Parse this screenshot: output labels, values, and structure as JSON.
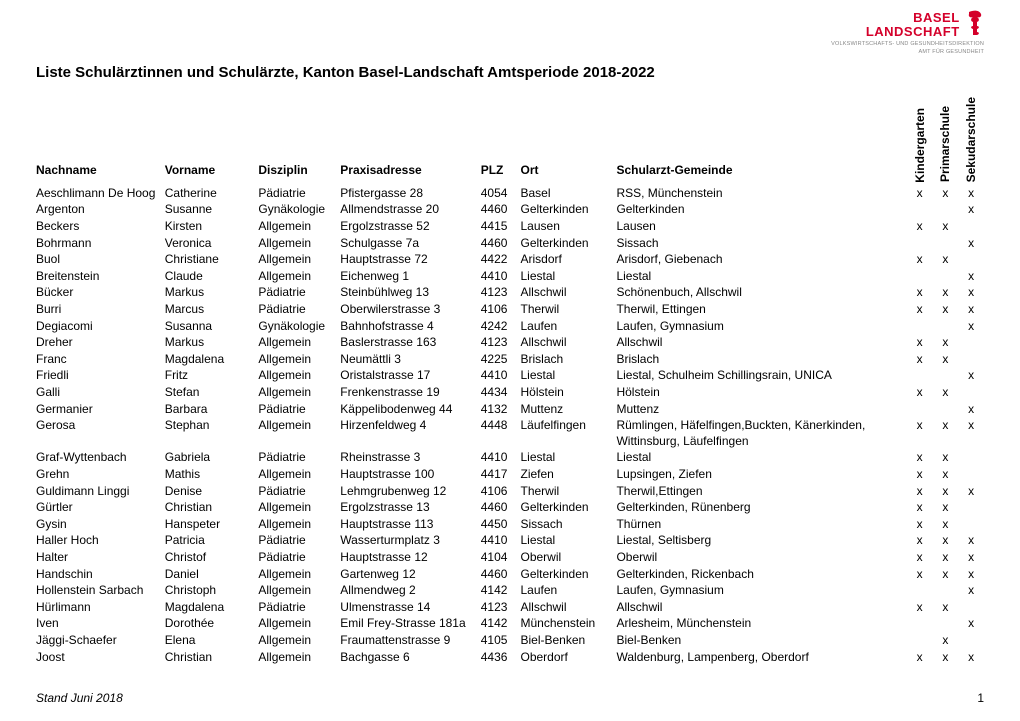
{
  "logo": {
    "line1": "BASEL",
    "line2": "LANDSCHAFT",
    "sub1": "VOLKSWIRTSCHAFTS- UND GESUNDHEITSDIREKTION",
    "sub2": "AMT FÜR GESUNDHEIT",
    "color": "#d4002a"
  },
  "title": "Liste Schulärztinnen und Schulärzte, Kanton Basel-Landschaft Amtsperiode 2018-2022",
  "columns": {
    "nachname": "Nachname",
    "vorname": "Vorname",
    "disziplin": "Disziplin",
    "adresse": "Praxisadresse",
    "plz": "PLZ",
    "ort": "Ort",
    "gemeinde": "Schularzt-Gemeinde",
    "kg": "Kindergarten",
    "ps": "Primarschule",
    "ss": "Sekudarschule"
  },
  "rows": [
    {
      "nach": "Aeschlimann De Hoog",
      "vor": "Catherine",
      "dis": "Pädiatrie",
      "adr": "Pfistergasse 28",
      "plz": "4054",
      "ort": "Basel",
      "gem": "RSS, Münchenstein",
      "kg": "x",
      "ps": "x",
      "ss": "x"
    },
    {
      "nach": "Argenton",
      "vor": "Susanne",
      "dis": "Gynäkologie",
      "adr": "Allmendstrasse 20",
      "plz": "4460",
      "ort": "Gelterkinden",
      "gem": "Gelterkinden",
      "kg": "",
      "ps": "",
      "ss": "x"
    },
    {
      "nach": "Beckers",
      "vor": "Kirsten",
      "dis": "Allgemein",
      "adr": "Ergolzstrasse 52",
      "plz": "4415",
      "ort": "Lausen",
      "gem": "Lausen",
      "kg": "x",
      "ps": "x",
      "ss": ""
    },
    {
      "nach": "Bohrmann",
      "vor": "Veronica",
      "dis": "Allgemein",
      "adr": "Schulgasse 7a",
      "plz": "4460",
      "ort": "Gelterkinden",
      "gem": "Sissach",
      "kg": "",
      "ps": "",
      "ss": "x"
    },
    {
      "nach": "Buol",
      "vor": "Christiane",
      "dis": "Allgemein",
      "adr": "Hauptstrasse 72",
      "plz": "4422",
      "ort": "Arisdorf",
      "gem": "Arisdorf, Giebenach",
      "kg": "x",
      "ps": "x",
      "ss": ""
    },
    {
      "nach": "Breitenstein",
      "vor": "Claude",
      "dis": "Allgemein",
      "adr": "Eichenweg 1",
      "plz": "4410",
      "ort": "Liestal",
      "gem": "Liestal",
      "kg": "",
      "ps": "",
      "ss": "x"
    },
    {
      "nach": "Bücker",
      "vor": "Markus",
      "dis": "Pädiatrie",
      "adr": "Steinbühlweg 13",
      "plz": "4123",
      "ort": "Allschwil",
      "gem": "Schönenbuch, Allschwil",
      "kg": "x",
      "ps": "x",
      "ss": "x"
    },
    {
      "nach": "Burri",
      "vor": "Marcus",
      "dis": "Pädiatrie",
      "adr": "Oberwilerstrasse 3",
      "plz": "4106",
      "ort": "Therwil",
      "gem": "Therwil, Ettingen",
      "kg": "x",
      "ps": "x",
      "ss": "x"
    },
    {
      "nach": "Degiacomi",
      "vor": "Susanna",
      "dis": "Gynäkologie",
      "adr": "Bahnhofstrasse 4",
      "plz": "4242",
      "ort": "Laufen",
      "gem": "Laufen, Gymnasium",
      "kg": "",
      "ps": "",
      "ss": "x"
    },
    {
      "nach": "Dreher",
      "vor": "Markus",
      "dis": "Allgemein",
      "adr": "Baslerstrasse 163",
      "plz": "4123",
      "ort": "Allschwil",
      "gem": "Allschwil",
      "kg": "x",
      "ps": "x",
      "ss": ""
    },
    {
      "nach": "Franc",
      "vor": "Magdalena",
      "dis": "Allgemein",
      "adr": "Neumättli 3",
      "plz": "4225",
      "ort": "Brislach",
      "gem": "Brislach",
      "kg": "x",
      "ps": "x",
      "ss": ""
    },
    {
      "nach": "Friedli",
      "vor": "Fritz",
      "dis": "Allgemein",
      "adr": "Oristalstrasse 17",
      "plz": "4410",
      "ort": "Liestal",
      "gem": "Liestal, Schulheim Schillingsrain, UNICA",
      "kg": "",
      "ps": "",
      "ss": "x"
    },
    {
      "nach": "Galli",
      "vor": "Stefan",
      "dis": "Allgemein",
      "adr": "Frenkenstrasse 19",
      "plz": "4434",
      "ort": "Hölstein",
      "gem": "Hölstein",
      "kg": "x",
      "ps": "x",
      "ss": ""
    },
    {
      "nach": "Germanier",
      "vor": "Barbara",
      "dis": "Pädiatrie",
      "adr": "Käppelibodenweg 44",
      "plz": "4132",
      "ort": "Muttenz",
      "gem": "Muttenz",
      "kg": "",
      "ps": "",
      "ss": "x"
    },
    {
      "nach": "Gerosa",
      "vor": "Stephan",
      "dis": "Allgemein",
      "adr": "Hirzenfeldweg 4",
      "plz": "4448",
      "ort": "Läufelfingen",
      "gem": "Rümlingen, Häfelfingen,Buckten, Känerkinden, Wittinsburg, Läufelfingen",
      "kg": "x",
      "ps": "x",
      "ss": "x"
    },
    {
      "nach": "Graf-Wyttenbach",
      "vor": "Gabriela",
      "dis": "Pädiatrie",
      "adr": "Rheinstrasse 3",
      "plz": "4410",
      "ort": "Liestal",
      "gem": "Liestal",
      "kg": "x",
      "ps": "x",
      "ss": ""
    },
    {
      "nach": "Grehn",
      "vor": "Mathis",
      "dis": "Allgemein",
      "adr": "Hauptstrasse 100",
      "plz": "4417",
      "ort": "Ziefen",
      "gem": "Lupsingen, Ziefen",
      "kg": "x",
      "ps": "x",
      "ss": ""
    },
    {
      "nach": "Guldimann Linggi",
      "vor": "Denise",
      "dis": "Pädiatrie",
      "adr": "Lehmgrubenweg 12",
      "plz": "4106",
      "ort": "Therwil",
      "gem": "Therwil,Ettingen",
      "kg": "x",
      "ps": "x",
      "ss": "x"
    },
    {
      "nach": "Gürtler",
      "vor": "Christian",
      "dis": "Allgemein",
      "adr": "Ergolzstrasse 13",
      "plz": "4460",
      "ort": "Gelterkinden",
      "gem": "Gelterkinden, Rünenberg",
      "kg": "x",
      "ps": "x",
      "ss": ""
    },
    {
      "nach": "Gysin",
      "vor": "Hanspeter",
      "dis": "Allgemein",
      "adr": "Hauptstrasse 113",
      "plz": "4450",
      "ort": "Sissach",
      "gem": "Thürnen",
      "kg": "x",
      "ps": "x",
      "ss": ""
    },
    {
      "nach": "Haller Hoch",
      "vor": "Patricia",
      "dis": "Pädiatrie",
      "adr": "Wasserturmplatz 3",
      "plz": "4410",
      "ort": "Liestal",
      "gem": "Liestal, Seltisberg",
      "kg": "x",
      "ps": "x",
      "ss": "x"
    },
    {
      "nach": "Halter",
      "vor": "Christof",
      "dis": "Pädiatrie",
      "adr": "Hauptstrasse 12",
      "plz": "4104",
      "ort": "Oberwil",
      "gem": "Oberwil",
      "kg": "x",
      "ps": "x",
      "ss": "x"
    },
    {
      "nach": "Handschin",
      "vor": "Daniel",
      "dis": "Allgemein",
      "adr": "Gartenweg 12",
      "plz": "4460",
      "ort": "Gelterkinden",
      "gem": "Gelterkinden, Rickenbach",
      "kg": "x",
      "ps": "x",
      "ss": "x"
    },
    {
      "nach": "Hollenstein Sarbach",
      "vor": "Christoph",
      "dis": "Allgemein",
      "adr": "Allmendweg 2",
      "plz": "4142",
      "ort": "Laufen",
      "gem": "Laufen, Gymnasium",
      "kg": "",
      "ps": "",
      "ss": "x"
    },
    {
      "nach": "Hürlimann",
      "vor": "Magdalena",
      "dis": "Pädiatrie",
      "adr": "Ulmenstrasse 14",
      "plz": "4123",
      "ort": "Allschwil",
      "gem": "Allschwil",
      "kg": "x",
      "ps": "x",
      "ss": ""
    },
    {
      "nach": "Iven",
      "vor": "Dorothée",
      "dis": "Allgemein",
      "adr": "Emil Frey-Strasse 181a",
      "plz": "4142",
      "ort": "Münchenstein",
      "gem": "Arlesheim, Münchenstein",
      "kg": "",
      "ps": "",
      "ss": "x"
    },
    {
      "nach": "Jäggi-Schaefer",
      "vor": "Elena",
      "dis": "Allgemein",
      "adr": "Fraumattenstrasse 9",
      "plz": "4105",
      "ort": "Biel-Benken",
      "gem": "Biel-Benken",
      "kg": "",
      "ps": "x",
      "ss": ""
    },
    {
      "nach": "Joost",
      "vor": "Christian",
      "dis": "Allgemein",
      "adr": "Bachgasse 6",
      "plz": "4436",
      "ort": "Oberdorf",
      "gem": "Waldenburg, Lampenberg, Oberdorf",
      "kg": "x",
      "ps": "x",
      "ss": "x"
    }
  ],
  "footer": {
    "left": "Stand Juni 2018",
    "page": "1"
  }
}
